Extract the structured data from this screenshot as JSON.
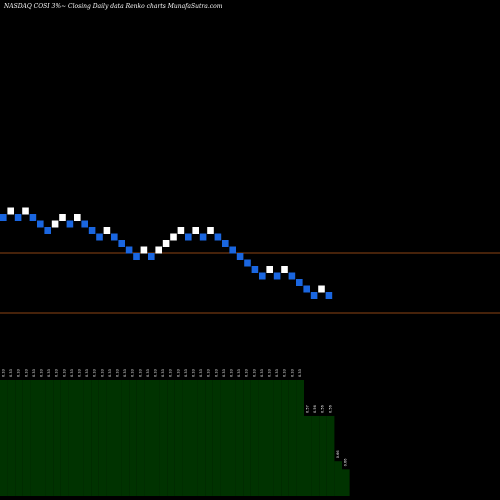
{
  "header": {
    "title": "NASDAQ COSI 3%~  Closing Daily data  Renko  charts MunafaSutra.com"
  },
  "colors": {
    "background": "#000000",
    "up_brick": "#ffffff",
    "down_brick": "#1a66e0",
    "level_line": "#8b4513",
    "volume_bar": "#003300"
  },
  "chart_data": {
    "type": "renko",
    "brick_directions": [
      "down",
      "up",
      "down",
      "up",
      "down",
      "down",
      "down",
      "up",
      "up",
      "down",
      "up",
      "down",
      "down",
      "down",
      "up",
      "down",
      "down",
      "down",
      "down",
      "up",
      "down",
      "up",
      "up",
      "up",
      "up",
      "down",
      "up",
      "down",
      "up",
      "down",
      "down",
      "down",
      "down",
      "down",
      "down",
      "down",
      "up",
      "down",
      "up",
      "down",
      "down",
      "down",
      "down",
      "up",
      "down"
    ],
    "level_lines": [
      "upper",
      "lower"
    ],
    "volume_labels": [
      "0.33",
      "0.33",
      "0.33",
      "0.33",
      "0.33",
      "0.33",
      "0.33",
      "0.33",
      "0.33",
      "0.33",
      "0.33",
      "0.33",
      "0.33",
      "0.33",
      "0.33",
      "0.33",
      "0.33",
      "0.33",
      "0.33",
      "0.33",
      "0.33",
      "0.33",
      "0.33",
      "0.33",
      "0.33",
      "0.33",
      "0.33",
      "0.33",
      "0.33",
      "0.33",
      "0.33",
      "0.33",
      "0.33",
      "0.33",
      "0.33",
      "0.33",
      "0.33",
      "0.33",
      "0.33",
      "0.33",
      "0.57",
      "0.56",
      "0.56",
      "0.56",
      "0.66",
      "0.66"
    ],
    "volume_heights": [
      1,
      1,
      1,
      1,
      1,
      1,
      1,
      1,
      1,
      1,
      1,
      1,
      1,
      1,
      1,
      1,
      1,
      1,
      1,
      1,
      1,
      1,
      1,
      1,
      1,
      1,
      1,
      1,
      1,
      1,
      1,
      1,
      1,
      1,
      1,
      1,
      1,
      1,
      1,
      1,
      0.69,
      0.69,
      0.69,
      0.69,
      0.3,
      0.23
    ]
  }
}
